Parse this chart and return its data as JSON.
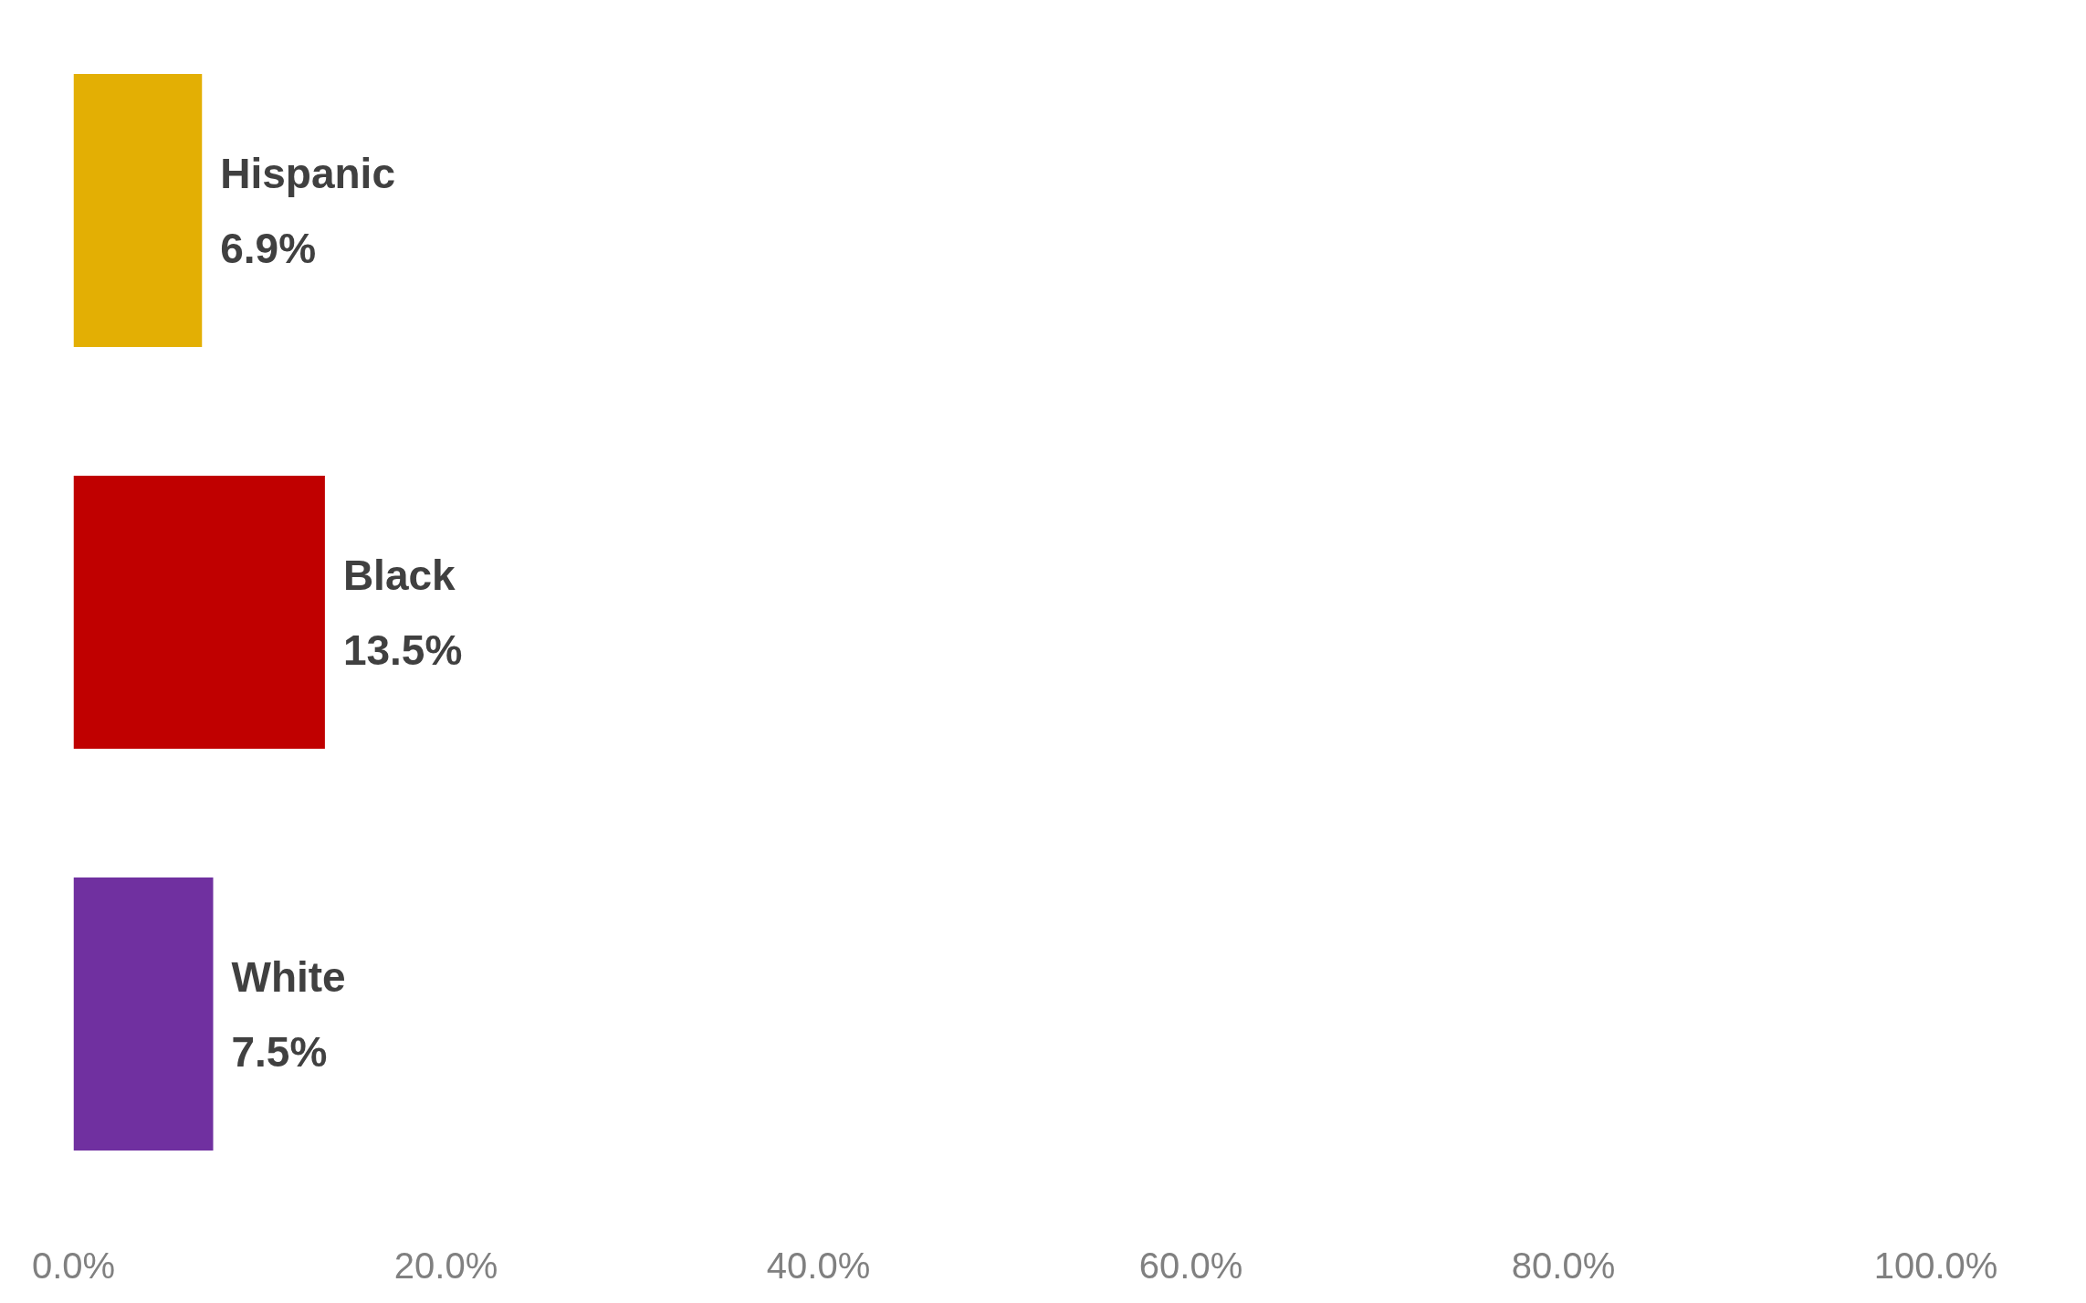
{
  "chart_data": {
    "type": "bar",
    "orientation": "horizontal",
    "categories": [
      "Hispanic",
      "Black",
      "White"
    ],
    "values": [
      6.9,
      13.5,
      7.5
    ],
    "colors": [
      "#e3af04",
      "#c00000",
      "#7030a0"
    ],
    "value_labels": [
      "6.9%",
      "13.5%",
      "7.5%"
    ],
    "xlim": [
      0,
      100
    ],
    "xticks": [
      {
        "value": 0,
        "label": "0.0%"
      },
      {
        "value": 20,
        "label": "20.0%"
      },
      {
        "value": 40,
        "label": "40.0%"
      },
      {
        "value": 60,
        "label": "60.0%"
      },
      {
        "value": 80,
        "label": "80.0%"
      },
      {
        "value": 100,
        "label": "100.0%"
      }
    ],
    "grid": false
  }
}
